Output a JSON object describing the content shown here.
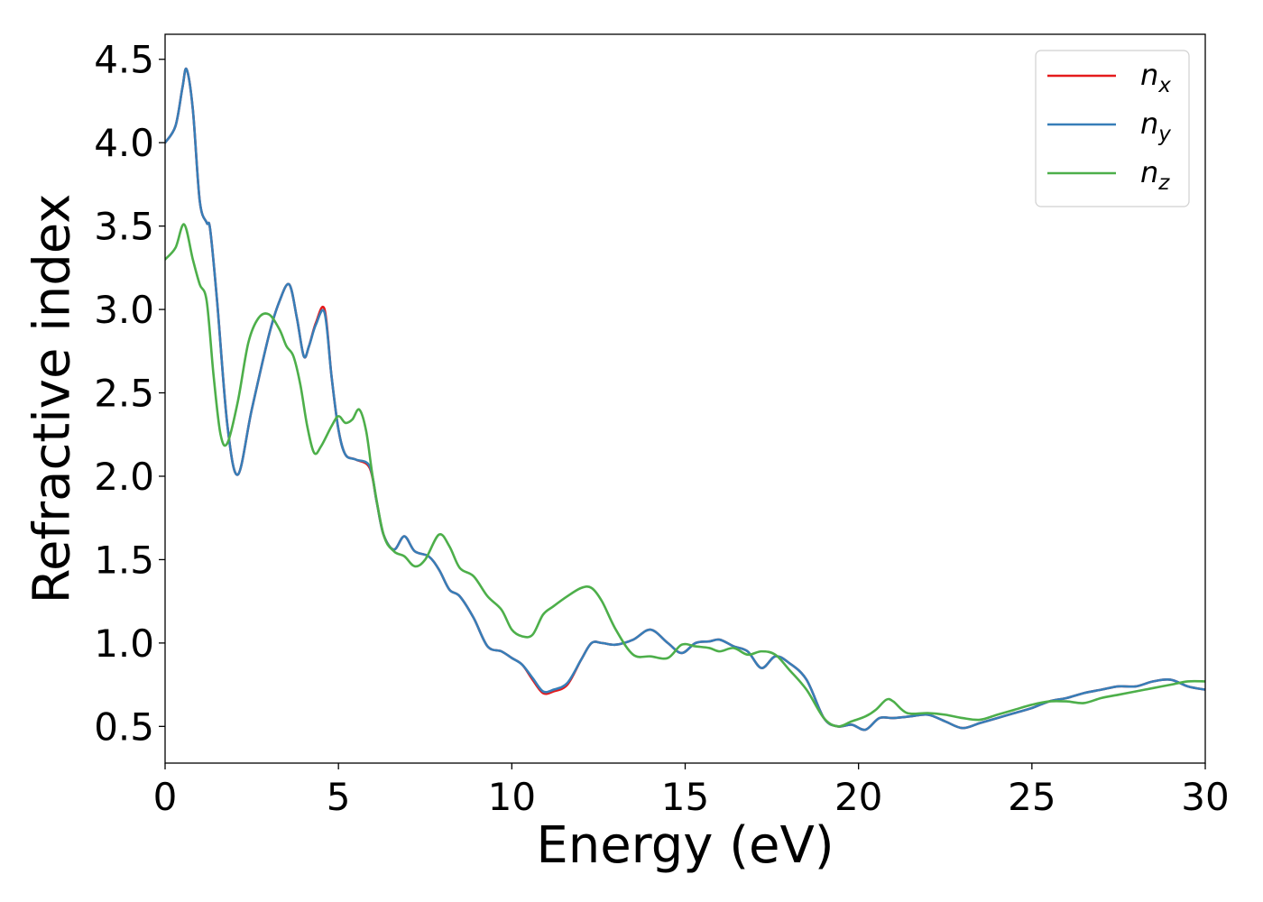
{
  "chart_data": {
    "type": "line",
    "title": "",
    "xlabel": "Energy (eV)",
    "ylabel": "Refractive index",
    "xlim": [
      0,
      30
    ],
    "ylim": [
      0.28,
      4.65
    ],
    "xticks": [
      0,
      5,
      10,
      15,
      20,
      25,
      30
    ],
    "xtick_labels": [
      "0",
      "5",
      "10",
      "15",
      "20",
      "25",
      "30"
    ],
    "yticks": [
      0.5,
      1.0,
      1.5,
      2.0,
      2.5,
      3.0,
      3.5,
      4.0,
      4.5
    ],
    "ytick_labels": [
      "0.5",
      "1.0",
      "1.5",
      "2.0",
      "2.5",
      "3.0",
      "3.5",
      "4.0",
      "4.5"
    ],
    "grid": false,
    "legend_position": "top-right",
    "series": [
      {
        "name": "n_x",
        "label_base": "n",
        "label_sub": "x",
        "color": "#e41a1c",
        "x": [
          0,
          0.3,
          0.5,
          0.62,
          0.8,
          1.0,
          1.2,
          1.3,
          1.5,
          1.8,
          2.1,
          2.5,
          3.0,
          3.3,
          3.58,
          3.8,
          4.0,
          4.15,
          4.35,
          4.6,
          4.8,
          5.0,
          5.2,
          5.5,
          5.9,
          6.1,
          6.3,
          6.6,
          6.9,
          7.2,
          7.6,
          7.9,
          8.2,
          8.5,
          8.9,
          9.3,
          9.7,
          10.0,
          10.3,
          10.6,
          10.9,
          11.2,
          11.6,
          12.0,
          12.3,
          12.6,
          13.0,
          13.5,
          14.0,
          14.5,
          14.9,
          15.3,
          15.7,
          16.0,
          16.4,
          16.8,
          17.2,
          17.6,
          18.0,
          18.5,
          19.0,
          19.4,
          19.8,
          20.2,
          20.6,
          21.0,
          21.5,
          22.0,
          22.5,
          23.0,
          23.5,
          24.0,
          24.5,
          25.0,
          25.5,
          26.0,
          26.5,
          27.0,
          27.5,
          28.0,
          28.5,
          29.0,
          29.5,
          30.0
        ],
        "y": [
          4.0,
          4.1,
          4.33,
          4.44,
          4.2,
          3.65,
          3.52,
          3.48,
          3.05,
          2.3,
          2.01,
          2.4,
          2.85,
          3.05,
          3.15,
          2.95,
          2.72,
          2.78,
          2.92,
          3.0,
          2.6,
          2.28,
          2.13,
          2.1,
          2.05,
          1.85,
          1.65,
          1.56,
          1.64,
          1.55,
          1.52,
          1.44,
          1.32,
          1.28,
          1.15,
          0.98,
          0.95,
          0.91,
          0.87,
          0.78,
          0.7,
          0.71,
          0.75,
          0.9,
          1.0,
          1.0,
          0.99,
          1.02,
          1.08,
          1.0,
          0.94,
          1.0,
          1.01,
          1.02,
          0.98,
          0.95,
          0.85,
          0.92,
          0.88,
          0.78,
          0.55,
          0.5,
          0.51,
          0.48,
          0.55,
          0.55,
          0.56,
          0.57,
          0.53,
          0.49,
          0.52,
          0.55,
          0.58,
          0.61,
          0.65,
          0.67,
          0.7,
          0.72,
          0.74,
          0.74,
          0.77,
          0.78,
          0.74,
          0.72
        ]
      },
      {
        "name": "n_y",
        "label_base": "n",
        "label_sub": "y",
        "color": "#377eb8",
        "x": [
          0,
          0.3,
          0.5,
          0.62,
          0.8,
          1.0,
          1.2,
          1.3,
          1.5,
          1.8,
          2.1,
          2.5,
          3.0,
          3.3,
          3.58,
          3.8,
          4.0,
          4.15,
          4.35,
          4.6,
          4.8,
          5.0,
          5.2,
          5.5,
          5.9,
          6.1,
          6.3,
          6.6,
          6.9,
          7.2,
          7.6,
          7.9,
          8.2,
          8.5,
          8.9,
          9.3,
          9.7,
          10.0,
          10.3,
          10.6,
          10.9,
          11.2,
          11.6,
          12.0,
          12.3,
          12.6,
          13.0,
          13.5,
          14.0,
          14.5,
          14.9,
          15.3,
          15.7,
          16.0,
          16.4,
          16.8,
          17.2,
          17.6,
          18.0,
          18.5,
          19.0,
          19.4,
          19.8,
          20.2,
          20.6,
          21.0,
          21.5,
          22.0,
          22.5,
          23.0,
          23.5,
          24.0,
          24.5,
          25.0,
          25.5,
          26.0,
          26.5,
          27.0,
          27.5,
          28.0,
          28.5,
          29.0,
          29.5,
          30.0
        ],
        "y": [
          4.0,
          4.1,
          4.33,
          4.44,
          4.2,
          3.65,
          3.52,
          3.48,
          3.05,
          2.3,
          2.01,
          2.4,
          2.85,
          3.05,
          3.15,
          2.95,
          2.72,
          2.78,
          2.91,
          2.98,
          2.6,
          2.28,
          2.13,
          2.1,
          2.06,
          1.85,
          1.65,
          1.56,
          1.64,
          1.55,
          1.52,
          1.44,
          1.32,
          1.28,
          1.15,
          0.98,
          0.95,
          0.91,
          0.87,
          0.79,
          0.71,
          0.72,
          0.76,
          0.9,
          1.0,
          1.0,
          0.99,
          1.02,
          1.08,
          1.0,
          0.94,
          1.0,
          1.01,
          1.02,
          0.98,
          0.95,
          0.85,
          0.92,
          0.88,
          0.78,
          0.55,
          0.5,
          0.51,
          0.48,
          0.55,
          0.55,
          0.56,
          0.57,
          0.53,
          0.49,
          0.52,
          0.55,
          0.58,
          0.61,
          0.65,
          0.67,
          0.7,
          0.72,
          0.74,
          0.74,
          0.77,
          0.78,
          0.74,
          0.72
        ]
      },
      {
        "name": "n_z",
        "label_base": "n",
        "label_sub": "z",
        "color": "#4daf4a",
        "x": [
          0,
          0.3,
          0.55,
          0.8,
          1.0,
          1.2,
          1.4,
          1.6,
          1.8,
          2.1,
          2.4,
          2.7,
          3.0,
          3.3,
          3.5,
          3.7,
          3.9,
          4.1,
          4.3,
          4.5,
          4.8,
          5.0,
          5.2,
          5.4,
          5.6,
          5.8,
          6.0,
          6.3,
          6.6,
          6.9,
          7.2,
          7.5,
          7.9,
          8.2,
          8.5,
          8.9,
          9.3,
          9.7,
          10.0,
          10.3,
          10.6,
          10.9,
          11.2,
          11.6,
          12.0,
          12.3,
          12.6,
          13.0,
          13.5,
          14.0,
          14.5,
          14.9,
          15.3,
          15.7,
          16.0,
          16.4,
          16.8,
          17.2,
          17.6,
          18.0,
          18.5,
          19.0,
          19.4,
          19.8,
          20.2,
          20.5,
          20.8,
          21.0,
          21.4,
          22.0,
          22.5,
          23.0,
          23.5,
          24.0,
          24.5,
          25.0,
          25.5,
          26.0,
          26.5,
          27.0,
          27.5,
          28.0,
          28.5,
          29.0,
          29.5,
          30.0
        ],
        "y": [
          3.3,
          3.37,
          3.51,
          3.3,
          3.15,
          3.05,
          2.6,
          2.25,
          2.2,
          2.45,
          2.8,
          2.95,
          2.97,
          2.88,
          2.78,
          2.72,
          2.55,
          2.3,
          2.14,
          2.18,
          2.3,
          2.36,
          2.32,
          2.34,
          2.4,
          2.27,
          1.98,
          1.65,
          1.55,
          1.52,
          1.46,
          1.5,
          1.65,
          1.58,
          1.45,
          1.4,
          1.28,
          1.2,
          1.08,
          1.04,
          1.05,
          1.17,
          1.22,
          1.28,
          1.33,
          1.33,
          1.25,
          1.08,
          0.93,
          0.92,
          0.91,
          0.99,
          0.98,
          0.97,
          0.95,
          0.97,
          0.93,
          0.95,
          0.93,
          0.84,
          0.72,
          0.55,
          0.5,
          0.53,
          0.56,
          0.6,
          0.66,
          0.65,
          0.58,
          0.58,
          0.57,
          0.55,
          0.54,
          0.57,
          0.6,
          0.63,
          0.65,
          0.65,
          0.64,
          0.67,
          0.69,
          0.71,
          0.73,
          0.75,
          0.77,
          0.77
        ]
      }
    ]
  }
}
